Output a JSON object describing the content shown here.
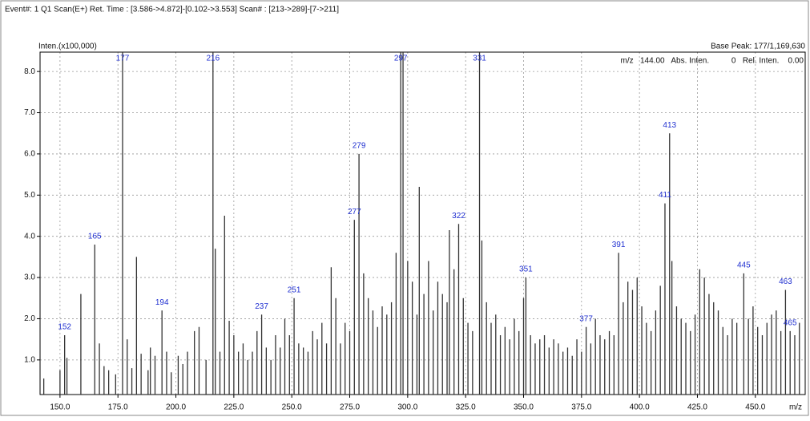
{
  "chart_data": {
    "type": "spectrum",
    "title": "Event#: 1 Q1 Scan(E+)  Ret. Time : [3.586->4.872]-[0.102->3.553]  Scan# : [213->289]-[7->211]",
    "y_label": "Inten.(x100,000)",
    "base_peak": "Base Peak: 177/1,169,630",
    "info": "m/z   144.00   Abs. Inten.          0   Rel. Inten.    0.00",
    "x_label": "m/z",
    "color": "#333333",
    "label_color": "#1f2fd0",
    "grid": true,
    "xlim": [
      141.4,
      471.5
    ],
    "ylim": [
      0.16,
      8.47
    ],
    "xticks": [
      {
        "value": 150,
        "label": "150.0"
      },
      {
        "value": 175,
        "label": "175.0"
      },
      {
        "value": 200,
        "label": "200.0"
      },
      {
        "value": 225,
        "label": "225.0"
      },
      {
        "value": 250,
        "label": "250.0"
      },
      {
        "value": 275,
        "label": "275.0"
      },
      {
        "value": 300,
        "label": "300.0"
      },
      {
        "value": 325,
        "label": "325.0"
      },
      {
        "value": 350,
        "label": "350.0"
      },
      {
        "value": 375,
        "label": "375.0"
      },
      {
        "value": 400,
        "label": "400.0"
      },
      {
        "value": 425,
        "label": "425.0"
      },
      {
        "value": 450,
        "label": "450.0"
      }
    ],
    "yticks": [
      {
        "value": 1,
        "label": "1.0"
      },
      {
        "value": 2,
        "label": "2.0"
      },
      {
        "value": 3,
        "label": "3.0"
      },
      {
        "value": 4,
        "label": "4.0"
      },
      {
        "value": 5,
        "label": "5.0"
      },
      {
        "value": 6,
        "label": "6.0"
      },
      {
        "value": 7,
        "label": "7.0"
      },
      {
        "value": 8,
        "label": "8.0"
      }
    ],
    "x": [
      143,
      150,
      152,
      153,
      159,
      165,
      167,
      169,
      171,
      174,
      177,
      179,
      181,
      183,
      185,
      188,
      189,
      191,
      194,
      196,
      198,
      201,
      203,
      205,
      208,
      210,
      213,
      216,
      217,
      219,
      221,
      223,
      225,
      227,
      229,
      231,
      233,
      235,
      237,
      239,
      241,
      243,
      245,
      247,
      249,
      251,
      253,
      255,
      257,
      259,
      261,
      263,
      265,
      267,
      269,
      271,
      273,
      275,
      277,
      279,
      281,
      283,
      285,
      287,
      289,
      291,
      293,
      295,
      297,
      298,
      300,
      302,
      304,
      305,
      307,
      309,
      311,
      313,
      315,
      317,
      318,
      320,
      322,
      324,
      326,
      328,
      331,
      332,
      334,
      336,
      338,
      340,
      342,
      344,
      346,
      348,
      350,
      351,
      353,
      355,
      357,
      359,
      361,
      363,
      365,
      367,
      369,
      371,
      373,
      375,
      377,
      379,
      381,
      383,
      385,
      387,
      389,
      391,
      393,
      395,
      397,
      399,
      401,
      403,
      405,
      407,
      409,
      411,
      413,
      414,
      416,
      418,
      420,
      422,
      424,
      426,
      428,
      430,
      432,
      434,
      436,
      438,
      440,
      442,
      445,
      447,
      449,
      451,
      453,
      455,
      457,
      459,
      461,
      463,
      465,
      467,
      469
    ],
    "values": [
      0.55,
      0.75,
      1.6,
      1.05,
      2.6,
      3.8,
      1.4,
      0.85,
      0.75,
      0.65,
      11.7,
      1.5,
      0.8,
      3.5,
      1.15,
      0.75,
      1.3,
      1.1,
      2.2,
      1.2,
      0.7,
      1.1,
      0.9,
      1.2,
      1.7,
      1.8,
      1.0,
      9.0,
      3.7,
      1.2,
      4.5,
      1.95,
      1.6,
      1.2,
      1.4,
      1.0,
      1.2,
      1.7,
      2.1,
      1.3,
      1.0,
      1.6,
      1.3,
      2.0,
      1.6,
      2.5,
      1.4,
      1.3,
      1.2,
      1.7,
      1.5,
      1.9,
      1.4,
      3.25,
      2.5,
      1.4,
      1.9,
      1.7,
      4.4,
      6.0,
      3.1,
      2.5,
      2.2,
      1.8,
      2.3,
      2.1,
      2.4,
      3.6,
      8.9,
      8.5,
      3.4,
      2.9,
      2.1,
      5.2,
      2.6,
      3.4,
      2.2,
      2.9,
      2.6,
      2.4,
      4.15,
      3.2,
      4.3,
      2.5,
      1.9,
      1.7,
      8.8,
      3.9,
      2.4,
      1.9,
      2.1,
      1.6,
      1.8,
      1.5,
      2.0,
      1.7,
      2.5,
      3.0,
      1.6,
      1.4,
      1.5,
      1.6,
      1.3,
      1.5,
      1.4,
      1.2,
      1.3,
      1.1,
      1.5,
      1.2,
      1.8,
      1.4,
      2.0,
      1.6,
      1.5,
      1.7,
      1.6,
      3.6,
      2.4,
      2.9,
      2.7,
      3.0,
      2.3,
      1.9,
      1.7,
      2.2,
      2.8,
      4.8,
      6.5,
      3.4,
      2.3,
      2.0,
      1.9,
      1.7,
      2.1,
      3.2,
      3.0,
      2.6,
      2.4,
      2.2,
      1.8,
      1.6,
      2.0,
      1.9,
      3.1,
      2.0,
      2.3,
      1.8,
      1.6,
      1.9,
      2.1,
      2.2,
      1.7,
      2.7,
      1.7,
      1.6,
      1.9
    ],
    "peak_labels": [
      152,
      165,
      177,
      194,
      216,
      237,
      251,
      277,
      279,
      297,
      322,
      331,
      351,
      377,
      391,
      411,
      413,
      445,
      463,
      465
    ]
  }
}
